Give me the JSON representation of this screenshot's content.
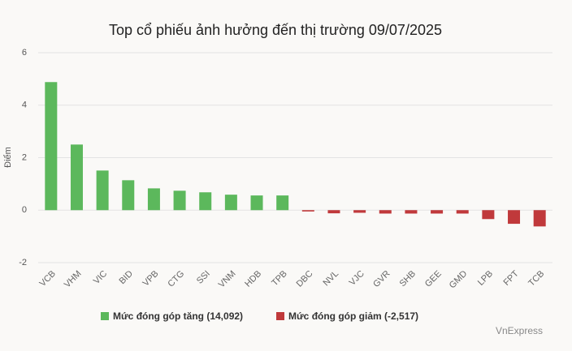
{
  "chart_data": {
    "type": "bar",
    "title": "Top cổ phiếu ảnh hưởng đến thị trường 09/07/2025",
    "y_label": "Điểm",
    "source": "VnExpress",
    "categories": [
      "VCB",
      "VHM",
      "VIC",
      "BID",
      "VPB",
      "CTG",
      "SSI",
      "VNM",
      "HDB",
      "TPB",
      "DBC",
      "NVL",
      "VJC",
      "GVR",
      "SHB",
      "GEE",
      "GMD",
      "LPB",
      "FPT",
      "TCB"
    ],
    "series": [
      {
        "name": "Mức đóng góp tăng (14,092)",
        "color": "#5cb85c",
        "values": [
          4.88,
          2.5,
          1.51,
          1.14,
          0.83,
          0.74,
          0.68,
          0.59,
          0.56,
          0.56,
          null,
          null,
          null,
          null,
          null,
          null,
          null,
          null,
          null,
          null
        ]
      },
      {
        "name": "Mức đóng góp giảm (-2,517)",
        "color": "#c0393b",
        "values": [
          null,
          null,
          null,
          null,
          null,
          null,
          null,
          null,
          null,
          null,
          -0.05,
          -0.12,
          -0.1,
          -0.13,
          -0.13,
          -0.13,
          -0.13,
          -0.34,
          -0.52,
          -0.62
        ]
      }
    ],
    "ylim": [
      -2,
      6
    ],
    "yticks": [
      -2,
      0,
      2,
      4,
      6
    ],
    "grid": true
  }
}
